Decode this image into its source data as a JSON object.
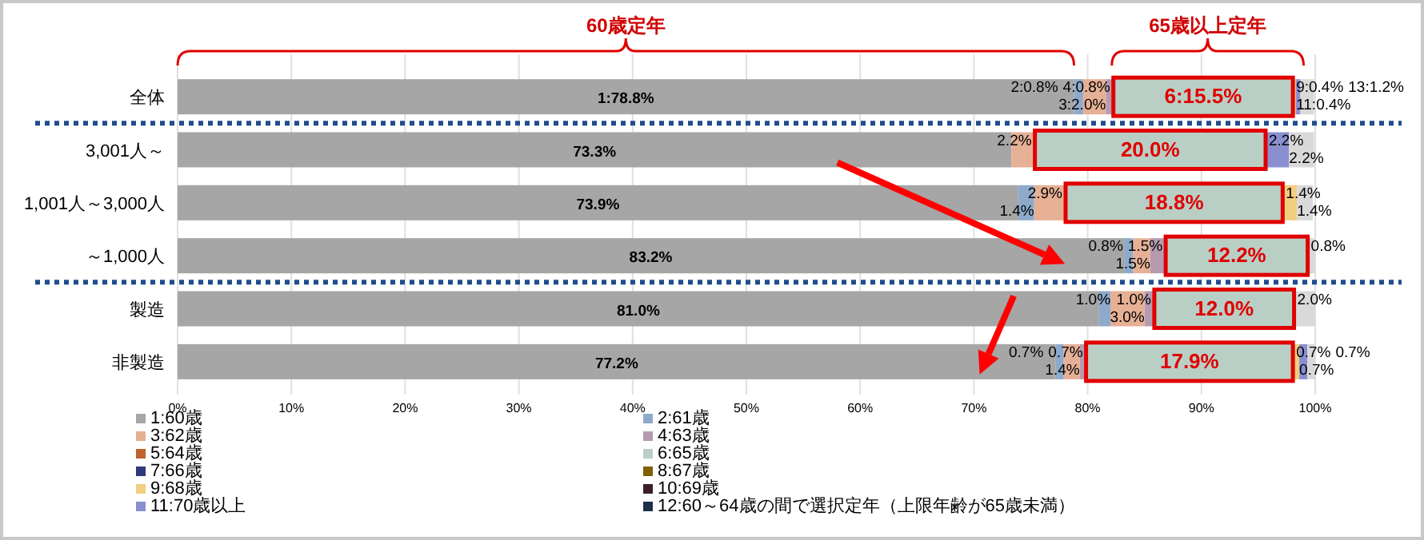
{
  "chart_data": {
    "type": "bar",
    "orientation": "horizontal",
    "stacked": true,
    "legend": "bottom",
    "grid": "x",
    "categories": [
      "全体",
      "3,001人～",
      "1,001人～3,000人",
      "～1,000人",
      "製造",
      "非製造"
    ],
    "xlim": [
      0,
      100
    ],
    "xticks": [
      {
        "value": 0,
        "label": "0%"
      },
      {
        "value": 10,
        "label": "10%"
      },
      {
        "value": 20,
        "label": "20%"
      },
      {
        "value": 30,
        "label": "30%"
      },
      {
        "value": 40,
        "label": "40%"
      },
      {
        "value": 50,
        "label": "50%"
      },
      {
        "value": 60,
        "label": "60%"
      },
      {
        "value": 70,
        "label": "70%"
      },
      {
        "value": 80,
        "label": "80%"
      },
      {
        "value": 90,
        "label": "90%"
      },
      {
        "value": 100,
        "label": "100%"
      }
    ],
    "annotations": [
      "60歳定年",
      "65歳以上定年"
    ],
    "series": [
      {
        "name": "1:60歳",
        "color": "#a6a6a6",
        "values": [
          78.8,
          73.3,
          73.9,
          83.2,
          81.0,
          77.2
        ],
        "value_labels": [
          "1:78.8%",
          "73.3%",
          "73.9%",
          "83.2%",
          "81.0%",
          "77.2%"
        ]
      },
      {
        "name": "2:61歳",
        "color": "#8eaacb",
        "values": [
          0.8,
          null,
          1.4,
          0.8,
          1.0,
          0.7
        ],
        "value_labels": [
          "2:0.8%",
          null,
          "1.4%",
          "0.8%",
          "1.0%",
          "0.7%"
        ]
      },
      {
        "name": "3:62歳",
        "color": "#e6b095",
        "values": [
          2.0,
          2.2,
          2.9,
          1.5,
          3.0,
          1.4
        ],
        "value_labels": [
          "3:2.0%",
          "2.2%",
          "2.9%",
          "1.5%",
          "3.0%",
          "1.4%"
        ]
      },
      {
        "name": "4:63歳",
        "color": "#b69bb0",
        "values": [
          0.8,
          null,
          null,
          1.5,
          1.0,
          0.7
        ],
        "value_labels": [
          "4:0.8%",
          null,
          null,
          "1.5%",
          "1.0%",
          "0.7%"
        ]
      },
      {
        "name": "5:64歳",
        "color": "#c0622d",
        "values": [
          null,
          null,
          null,
          null,
          null,
          null
        ]
      },
      {
        "name": "6:65歳",
        "color": "#b9cfc6",
        "values": [
          15.5,
          20.0,
          18.8,
          12.2,
          12.0,
          17.9
        ],
        "value_labels": [
          "6:15.5%",
          "20.0%",
          "18.8%",
          "12.2%",
          "12.0%",
          "17.9%"
        ]
      },
      {
        "name": "7:66歳",
        "color": "#2e3a7a",
        "values": [
          null,
          null,
          null,
          null,
          null,
          null
        ]
      },
      {
        "name": "8:67歳",
        "color": "#806000",
        "values": [
          null,
          null,
          null,
          null,
          null,
          null
        ]
      },
      {
        "name": "9:68歳",
        "color": "#f2cf7f",
        "values": [
          0.4,
          null,
          1.4,
          null,
          null,
          0.7
        ],
        "value_labels": [
          "9:0.4%",
          null,
          "1.4%",
          null,
          null,
          "0.7%"
        ]
      },
      {
        "name": "10:69歳",
        "color": "#3d1f2c",
        "values": [
          null,
          null,
          null,
          null,
          null,
          null
        ]
      },
      {
        "name": "11:70歳以上",
        "color": "#8a8fd0",
        "values": [
          0.4,
          2.2,
          null,
          null,
          null,
          0.7
        ],
        "value_labels": [
          "11:0.4%",
          "2.2%",
          null,
          null,
          null,
          "0.7%"
        ]
      },
      {
        "name": "12:60～64歳の間で選択定年（上限年齢が65歳未満）",
        "color": "#1f3049",
        "values": [
          null,
          null,
          null,
          null,
          null,
          null
        ]
      },
      {
        "color": "#d9d9d9",
        "values": [
          1.2,
          2.2,
          1.4,
          0.8,
          2.0,
          0.7
        ],
        "value_labels": [
          "13:1.2%",
          "2.2%",
          "1.4%",
          "0.8%",
          "2.0%",
          "0.7%"
        ]
      }
    ]
  }
}
